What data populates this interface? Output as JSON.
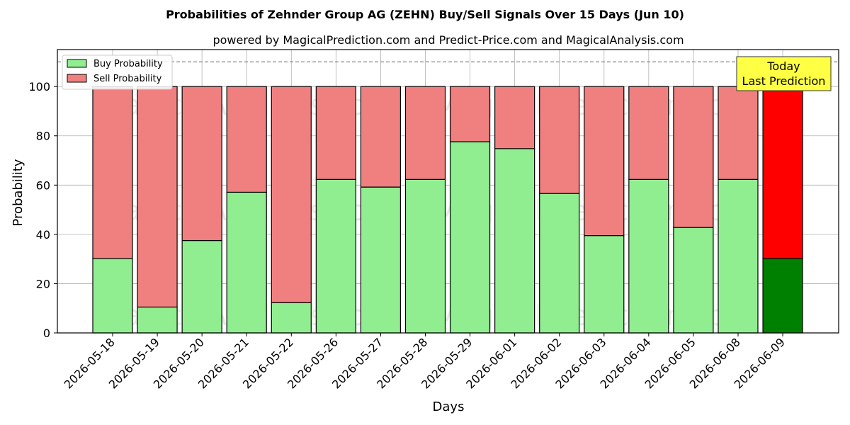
{
  "chart_data": {
    "type": "bar",
    "stacked": true,
    "title": "Probabilities of Zehnder Group AG (ZEHN) Buy/Sell Signals Over 15 Days (Jun 10)",
    "subtitle": "powered by MagicalPrediction.com and Predict-Price.com and MagicalAnalysis.com",
    "xlabel": "Days",
    "ylabel": "Probability",
    "ylim": [
      0,
      115
    ],
    "yticks": [
      0,
      20,
      40,
      60,
      80,
      100
    ],
    "grid": true,
    "legend_position": "top-left",
    "reference_line": 110,
    "categories": [
      "2026-05-18",
      "2026-05-19",
      "2026-05-20",
      "2026-05-21",
      "2026-05-22",
      "2026-05-26",
      "2026-05-27",
      "2026-05-28",
      "2026-05-29",
      "2026-06-01",
      "2026-06-02",
      "2026-06-03",
      "2026-06-04",
      "2026-06-05",
      "2026-06-08",
      "2026-06-09"
    ],
    "series": [
      {
        "name": "Buy Probability",
        "color": "#90ee90",
        "highlight_color": "#008000",
        "values": [
          30.2,
          10.5,
          37.5,
          57.1,
          12.3,
          62.3,
          59.2,
          62.3,
          77.6,
          74.8,
          56.6,
          39.5,
          62.3,
          42.8,
          62.3,
          30.2
        ]
      },
      {
        "name": "Sell Probability",
        "color": "#f08080",
        "highlight_color": "#ff0000",
        "values": [
          69.8,
          89.5,
          62.5,
          42.9,
          87.7,
          37.7,
          40.8,
          37.7,
          22.4,
          25.2,
          43.4,
          60.5,
          37.7,
          57.2,
          37.7,
          69.8
        ]
      }
    ],
    "highlight_index": 15,
    "annotation": {
      "lines": [
        "Today",
        "Last Prediction"
      ],
      "bg_color": "#ffff44"
    },
    "watermarks": [
      "MagicalAnalysis.com",
      "MagicalPrediction.com"
    ]
  }
}
